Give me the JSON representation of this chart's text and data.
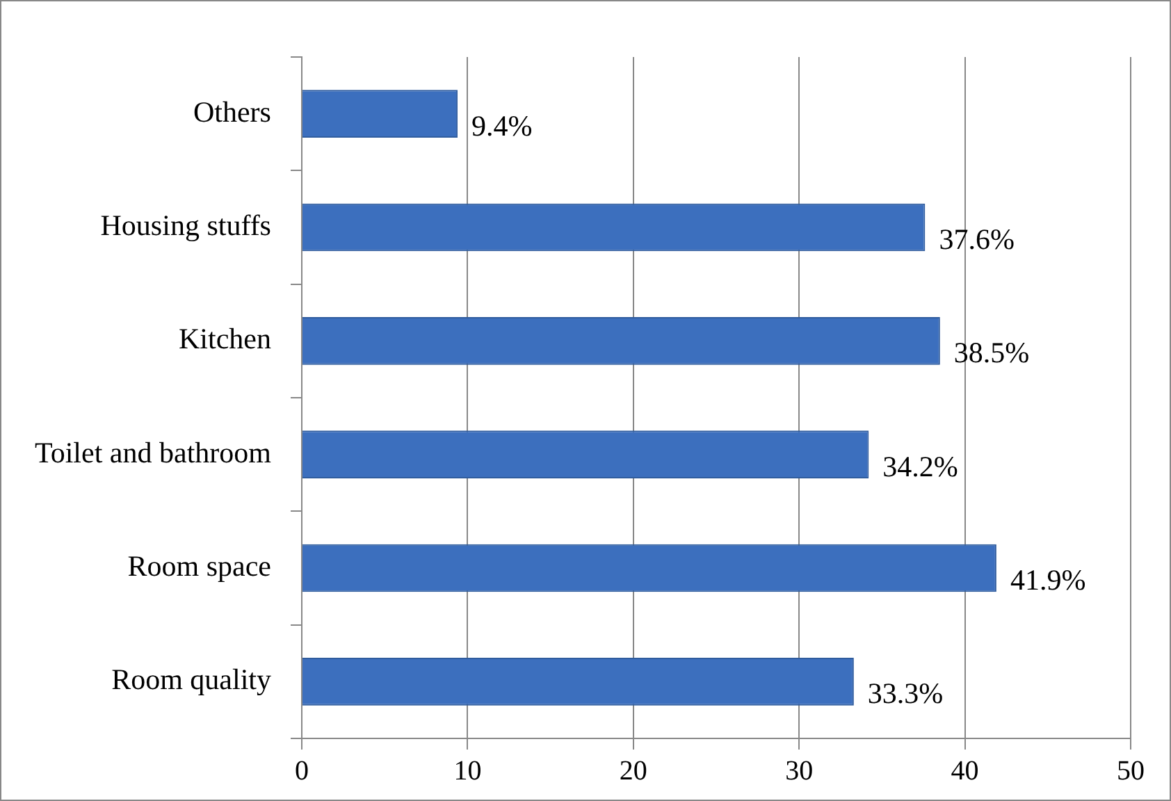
{
  "chart_data": {
    "type": "bar",
    "orientation": "horizontal",
    "categories": [
      "Others",
      "Housing stuffs",
      "Kitchen",
      "Toilet and bathroom",
      "Room space",
      "Room quality"
    ],
    "values": [
      9.4,
      37.6,
      38.5,
      34.2,
      41.9,
      33.3
    ],
    "value_labels": [
      "9.4%",
      "37.6%",
      "38.5%",
      "34.2%",
      "41.9%",
      "33.3%"
    ],
    "color": "#3c6fbe",
    "xlim": [
      0,
      50
    ],
    "xticks": [
      0,
      10,
      20,
      30,
      40,
      50
    ],
    "grid": "x",
    "legend": false
  }
}
